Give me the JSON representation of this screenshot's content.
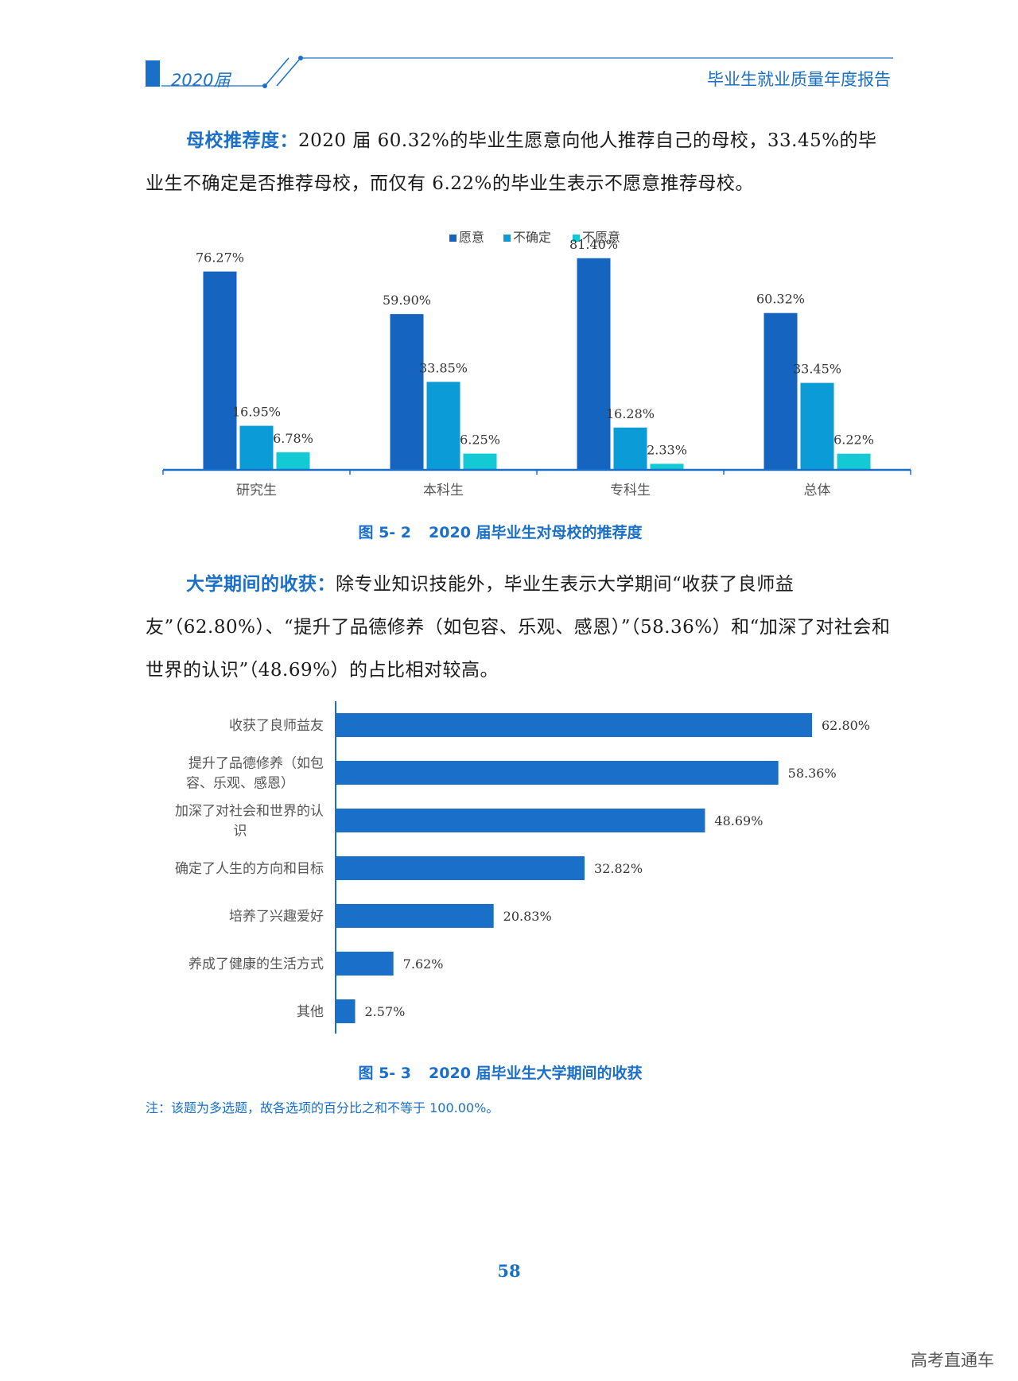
{
  "header": {
    "year": "2020届",
    "title": "毕业生就业质量年度报告"
  },
  "paragraph1": {
    "lead": "母校推荐度：",
    "text": "2020 届 60.32%的毕业生愿意向他人推荐自己的母校，33.45%的毕业生不确定是否推荐母校，而仅有 6.22%的毕业生表示不愿意推荐母校。"
  },
  "paragraph2": {
    "lead": "大学期间的收获：",
    "text": "除专业知识技能外，毕业生表示大学期间“收获了良师益友”（62.80%）、“提升了品德修养（如包容、乐观、感恩）”（58.36%）和“加深了对社会和世界的认识”（48.69%）的占比相对较高。"
  },
  "figure2": {
    "number": "图 5- 2",
    "title": "2020 届毕业生对母校的推荐度"
  },
  "figure3": {
    "number": "图 5- 3",
    "title": "2020 届毕业生大学期间的收获"
  },
  "note": "注：该题为多选题，故各选项的百分比之和不等于 100.00%。",
  "page_number": "58",
  "watermark": "高考直通车",
  "colors": {
    "accent": "#1a6fc9",
    "series1": "#1565c0",
    "series2": "#0b9bd7",
    "series3": "#12c9d4",
    "bar": "#1a6fc9"
  },
  "chart_data": [
    {
      "type": "bar",
      "categories": [
        "研究生",
        "本科生",
        "专科生",
        "总体"
      ],
      "series": [
        {
          "name": "愿意",
          "values": [
            76.27,
            59.9,
            81.4,
            60.32
          ],
          "labels": [
            "76.27%",
            "59.90%",
            "81.40%",
            "60.32%"
          ]
        },
        {
          "name": "不确定",
          "values": [
            16.95,
            33.85,
            16.28,
            33.45
          ],
          "labels": [
            "16.95%",
            "33.85%",
            "16.28%",
            "33.45%"
          ]
        },
        {
          "name": "不愿意",
          "values": [
            6.78,
            6.25,
            2.33,
            6.22
          ],
          "labels": [
            "6.78%",
            "6.25%",
            "2.33%",
            "6.22%"
          ]
        }
      ],
      "ylim": [
        0,
        85
      ],
      "legend": "top",
      "grid": false
    },
    {
      "type": "bar",
      "orientation": "horizontal",
      "categories": [
        "收获了良师益友",
        "提升了品德修养（如包容、乐观、感恩）",
        "加深了对社会和世界的认识",
        "确定了人生的方向和目标",
        "培养了兴趣爱好",
        "养成了健康的生活方式",
        "其他"
      ],
      "category_lines": [
        [
          "收获了良师益友"
        ],
        [
          "提升了品德修养（如包",
          "容、乐观、感恩）"
        ],
        [
          "加深了对社会和世界的认",
          "识"
        ],
        [
          "确定了人生的方向和目标"
        ],
        [
          "培养了兴趣爱好"
        ],
        [
          "养成了健康的生活方式"
        ],
        [
          "其他"
        ]
      ],
      "values": [
        62.8,
        58.36,
        48.69,
        32.82,
        20.83,
        7.62,
        2.57
      ],
      "labels": [
        "62.80%",
        "58.36%",
        "48.69%",
        "32.82%",
        "20.83%",
        "7.62%",
        "2.57%"
      ],
      "xlim": [
        0,
        65
      ],
      "grid": false
    }
  ]
}
